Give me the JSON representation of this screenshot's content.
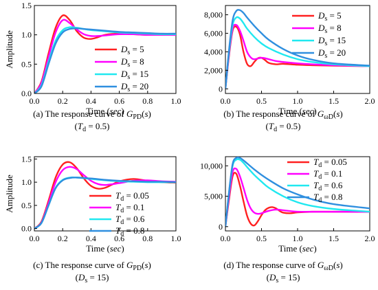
{
  "chart_data": [
    {
      "type": "line",
      "caption": "(a) The response curve of G",
      "caption_sub": "PD",
      "caption_tail": "(s)",
      "caption2_main": "(T",
      "caption2_sub": "d",
      "caption2_tail": " = 0.5)",
      "xlabel": "Time",
      "xlabel_unit": "sec",
      "ylabel": "Amplitude",
      "xlim": [
        0,
        1.0
      ],
      "ylim": [
        0,
        1.5
      ],
      "xticks": [
        "0.0",
        "0.2",
        "0.4",
        "0.6",
        "0.8",
        "1.0"
      ],
      "yticks": [
        "0.0",
        "0.5",
        "1.0",
        "1.5"
      ],
      "legend_position": "lower-right",
      "series": [
        {
          "name_main": "D",
          "name_sub": "s",
          "name_value": " = 5",
          "color": "#ff2020",
          "x": [
            0,
            0.05,
            0.1,
            0.15,
            0.2,
            0.25,
            0.3,
            0.35,
            0.4,
            0.45,
            0.5,
            0.6,
            0.7,
            0.8,
            0.9,
            1.0
          ],
          "y": [
            0,
            0.2,
            0.68,
            1.12,
            1.33,
            1.25,
            1.06,
            0.95,
            0.93,
            0.96,
            1.0,
            1.02,
            1.01,
            1.0,
            1.0,
            1.0
          ]
        },
        {
          "name_main": "D",
          "name_sub": "s",
          "name_value": " = 8",
          "color": "#ff00ff",
          "x": [
            0,
            0.05,
            0.1,
            0.15,
            0.2,
            0.25,
            0.3,
            0.35,
            0.4,
            0.45,
            0.5,
            0.6,
            0.7,
            0.8,
            0.9,
            1.0
          ],
          "y": [
            0,
            0.18,
            0.62,
            1.04,
            1.25,
            1.2,
            1.09,
            1.01,
            0.98,
            0.98,
            0.99,
            1.01,
            1.01,
            1.0,
            1.0,
            1.0
          ]
        },
        {
          "name_main": "D",
          "name_sub": "s",
          "name_value": " = 15",
          "color": "#20e8f0",
          "x": [
            0,
            0.05,
            0.1,
            0.15,
            0.2,
            0.25,
            0.3,
            0.35,
            0.4,
            0.5,
            0.6,
            0.7,
            0.8,
            0.9,
            1.0
          ],
          "y": [
            0,
            0.14,
            0.54,
            0.9,
            1.08,
            1.13,
            1.12,
            1.1,
            1.08,
            1.06,
            1.04,
            1.03,
            1.02,
            1.01,
            1.01
          ]
        },
        {
          "name_main": "D",
          "name_sub": "s",
          "name_value": " = 20",
          "color": "#2f8fdf",
          "x": [
            0,
            0.05,
            0.1,
            0.15,
            0.2,
            0.25,
            0.3,
            0.35,
            0.4,
            0.5,
            0.6,
            0.7,
            0.8,
            0.9,
            1.0
          ],
          "y": [
            0,
            0.12,
            0.5,
            0.85,
            1.04,
            1.1,
            1.11,
            1.1,
            1.09,
            1.07,
            1.05,
            1.04,
            1.03,
            1.02,
            1.02
          ]
        }
      ]
    },
    {
      "type": "line",
      "caption": "(b) The response curve of G",
      "caption_sub": "ωD",
      "caption_tail": "(s)",
      "caption2_main": "(T",
      "caption2_sub": "d",
      "caption2_tail": " = 0.5)",
      "xlabel": "Time",
      "xlabel_unit": "sec",
      "ylabel": "",
      "xlim": [
        0,
        2.0
      ],
      "ylim": [
        -500,
        9000
      ],
      "xticks": [
        "0.0",
        "0.5",
        "1.0",
        "1.5",
        "2.0"
      ],
      "yticks": [
        "0",
        "2,000",
        "4,000",
        "6,000",
        "8,000"
      ],
      "legend_position": "top-right",
      "series": [
        {
          "name_main": "D",
          "name_sub": "s",
          "name_value": " = 5",
          "color": "#ff2020",
          "x": [
            0,
            0.05,
            0.1,
            0.15,
            0.2,
            0.25,
            0.3,
            0.35,
            0.4,
            0.45,
            0.5,
            0.55,
            0.6,
            0.7,
            0.8,
            1.0,
            1.2,
            1.5,
            2.0
          ],
          "y": [
            0,
            3600,
            6300,
            6700,
            5900,
            4000,
            2700,
            2450,
            2900,
            3300,
            3350,
            3100,
            2800,
            2650,
            2700,
            2600,
            2550,
            2500,
            2450
          ]
        },
        {
          "name_main": "D",
          "name_sub": "s",
          "name_value": " = 8",
          "color": "#ff00ff",
          "x": [
            0,
            0.05,
            0.1,
            0.15,
            0.2,
            0.25,
            0.3,
            0.35,
            0.4,
            0.5,
            0.6,
            0.7,
            0.8,
            1.0,
            1.2,
            1.5,
            2.0
          ],
          "y": [
            0,
            3800,
            6500,
            6900,
            6300,
            5200,
            4000,
            3400,
            3200,
            3350,
            3200,
            3000,
            2900,
            2750,
            2650,
            2550,
            2450
          ]
        },
        {
          "name_main": "D",
          "name_sub": "s",
          "name_value": " = 15",
          "color": "#20e8f0",
          "x": [
            0,
            0.05,
            0.1,
            0.15,
            0.2,
            0.25,
            0.3,
            0.4,
            0.5,
            0.6,
            0.8,
            1.0,
            1.2,
            1.5,
            2.0
          ],
          "y": [
            0,
            4000,
            6900,
            7700,
            7600,
            7100,
            6500,
            5600,
            4900,
            4400,
            3700,
            3200,
            2900,
            2650,
            2450
          ]
        },
        {
          "name_main": "D",
          "name_sub": "s",
          "name_value": " = 20",
          "color": "#2f8fdf",
          "x": [
            0,
            0.05,
            0.1,
            0.15,
            0.2,
            0.25,
            0.3,
            0.4,
            0.5,
            0.6,
            0.8,
            1.0,
            1.2,
            1.5,
            2.0
          ],
          "y": [
            0,
            4200,
            7400,
            8400,
            8500,
            8200,
            7700,
            6800,
            6000,
            5300,
            4300,
            3600,
            3150,
            2750,
            2500
          ]
        }
      ]
    },
    {
      "type": "line",
      "caption": "(c) The response curve of G",
      "caption_sub": "PD",
      "caption_tail": "(s)",
      "caption2_main": "(D",
      "caption2_sub": "s",
      "caption2_tail": " = 15)",
      "xlabel": "Time",
      "xlabel_unit": "sec",
      "ylabel": "Amplitude",
      "xlim": [
        0,
        1.0
      ],
      "ylim": [
        -0.05,
        1.55
      ],
      "xticks": [
        "0.0",
        "0.2",
        "0.4",
        "0.6",
        "0.8",
        "1.0"
      ],
      "yticks": [
        "0.0",
        "0.5",
        "1.0",
        "1.5"
      ],
      "legend_position": "lower-right",
      "series": [
        {
          "name_main": "T",
          "name_sub": "d",
          "name_value": " = 0.05",
          "color": "#ff2020",
          "x": [
            0,
            0.05,
            0.1,
            0.15,
            0.2,
            0.25,
            0.3,
            0.35,
            0.4,
            0.45,
            0.5,
            0.55,
            0.6,
            0.7,
            0.8,
            0.9,
            1.0
          ],
          "y": [
            0,
            0.15,
            0.6,
            1.1,
            1.38,
            1.43,
            1.3,
            1.08,
            0.92,
            0.86,
            0.88,
            0.95,
            1.02,
            1.07,
            1.03,
            1.0,
            0.99
          ]
        },
        {
          "name_main": "T",
          "name_sub": "d",
          "name_value": " = 0.1",
          "color": "#ff00ff",
          "x": [
            0,
            0.05,
            0.1,
            0.15,
            0.2,
            0.25,
            0.3,
            0.35,
            0.4,
            0.45,
            0.5,
            0.6,
            0.7,
            0.8,
            0.9,
            1.0
          ],
          "y": [
            0,
            0.13,
            0.55,
            1.0,
            1.26,
            1.33,
            1.28,
            1.15,
            1.03,
            0.96,
            0.94,
            0.98,
            1.03,
            1.04,
            1.02,
            1.01
          ]
        },
        {
          "name_main": "T",
          "name_sub": "d",
          "name_value": " = 0.6",
          "color": "#20e8f0",
          "x": [
            0,
            0.05,
            0.1,
            0.15,
            0.2,
            0.25,
            0.3,
            0.4,
            0.5,
            0.6,
            0.7,
            0.8,
            0.9,
            1.0
          ],
          "y": [
            0,
            0.12,
            0.5,
            0.88,
            1.05,
            1.1,
            1.1,
            1.07,
            1.04,
            1.02,
            1.01,
            1.0,
            1.0,
            1.0
          ]
        },
        {
          "name_main": "T",
          "name_sub": "d",
          "name_value": " = 0.8",
          "color": "#2f8fdf",
          "x": [
            0,
            0.05,
            0.1,
            0.15,
            0.2,
            0.25,
            0.3,
            0.4,
            0.5,
            0.6,
            0.7,
            0.8,
            0.9,
            1.0
          ],
          "y": [
            0,
            0.12,
            0.5,
            0.87,
            1.04,
            1.09,
            1.1,
            1.08,
            1.05,
            1.03,
            1.02,
            1.01,
            1.01,
            1.0
          ]
        }
      ]
    },
    {
      "type": "line",
      "caption": "(d) The response curve of G",
      "caption_sub": "ωD",
      "caption_tail": "(s)",
      "caption2_main": "(D",
      "caption2_sub": "s",
      "caption2_tail": " = 15)",
      "xlabel": "Time",
      "xlabel_unit": "sec",
      "ylabel": "",
      "xlim": [
        0,
        2.0
      ],
      "ylim": [
        -700,
        11500
      ],
      "xticks": [
        "0.0",
        "0.5",
        "1.0",
        "1.5",
        "2.0"
      ],
      "yticks": [
        "0",
        "5,000",
        "10,000"
      ],
      "legend_position": "top-right",
      "series": [
        {
          "name_main": "T",
          "name_sub": "d",
          "name_value": " = 0.05",
          "color": "#ff2020",
          "x": [
            0,
            0.05,
            0.1,
            0.15,
            0.2,
            0.25,
            0.3,
            0.35,
            0.4,
            0.45,
            0.5,
            0.55,
            0.6,
            0.65,
            0.7,
            0.75,
            0.8,
            0.9,
            1.0,
            1.2,
            1.5,
            2.0
          ],
          "y": [
            0,
            4500,
            8300,
            8700,
            6800,
            4200,
            1800,
            500,
            200,
            900,
            1900,
            2700,
            3100,
            3200,
            3000,
            2600,
            2300,
            2200,
            2350,
            2450,
            2450,
            2450
          ]
        },
        {
          "name_main": "T",
          "name_sub": "d",
          "name_value": " = 0.1",
          "color": "#ff00ff",
          "x": [
            0,
            0.05,
            0.1,
            0.15,
            0.2,
            0.25,
            0.3,
            0.35,
            0.4,
            0.45,
            0.5,
            0.6,
            0.7,
            0.8,
            0.9,
            1.0,
            1.2,
            1.5,
            2.0
          ],
          "y": [
            0,
            5000,
            9000,
            9500,
            8300,
            6400,
            4400,
            3000,
            2300,
            2100,
            2200,
            2600,
            2800,
            2700,
            2550,
            2450,
            2450,
            2450,
            2450
          ]
        },
        {
          "name_main": "T",
          "name_sub": "d",
          "name_value": " = 0.6",
          "color": "#20e8f0",
          "x": [
            0,
            0.05,
            0.1,
            0.15,
            0.2,
            0.25,
            0.3,
            0.4,
            0.5,
            0.6,
            0.8,
            1.0,
            1.2,
            1.5,
            2.0
          ],
          "y": [
            0,
            5600,
            10000,
            11000,
            11000,
            10500,
            9800,
            8500,
            7400,
            6400,
            5000,
            4000,
            3400,
            2900,
            2450
          ]
        },
        {
          "name_main": "T",
          "name_sub": "d",
          "name_value": " = 0.8",
          "color": "#2f8fdf",
          "x": [
            0,
            0.05,
            0.1,
            0.15,
            0.2,
            0.25,
            0.3,
            0.4,
            0.5,
            0.6,
            0.8,
            1.0,
            1.2,
            1.5,
            2.0
          ],
          "y": [
            0,
            5700,
            10300,
            11300,
            11300,
            10900,
            10400,
            9400,
            8500,
            7700,
            6300,
            5300,
            4500,
            3700,
            3000
          ]
        }
      ]
    }
  ]
}
